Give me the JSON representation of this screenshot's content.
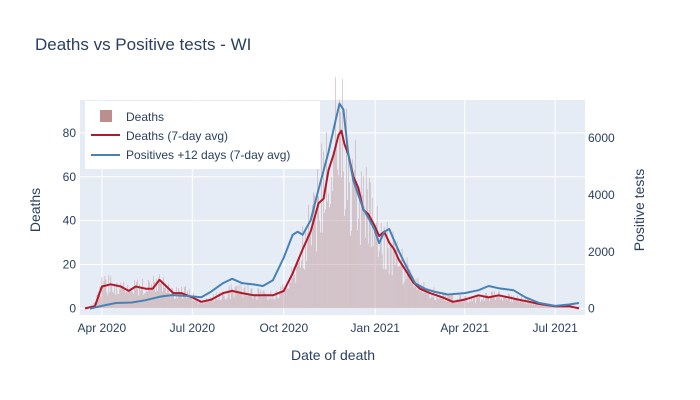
{
  "chart_data": {
    "type": "bar",
    "title": "Deaths vs Positive tests - WI",
    "xlabel": "Date of death",
    "ylabel": "Deaths",
    "y2label": "Positive tests",
    "ylim": [
      -3,
      95
    ],
    "y2lim": [
      -220,
      7330
    ],
    "yticks": [
      0,
      20,
      40,
      60,
      80
    ],
    "y2ticks": [
      0,
      2000,
      4000,
      6000
    ],
    "xlim": [
      "2020-03-10",
      "2021-07-31"
    ],
    "xticks": [
      {
        "date": "2020-04-01",
        "label": "Apr 2020"
      },
      {
        "date": "2020-07-01",
        "label": "Jul 2020"
      },
      {
        "date": "2020-10-01",
        "label": "Oct 2020"
      },
      {
        "date": "2021-01-01",
        "label": "Jan 2021"
      },
      {
        "date": "2021-04-01",
        "label": "Apr 2021"
      },
      {
        "date": "2021-07-01",
        "label": "Jul 2021"
      }
    ],
    "grid": true,
    "legend_position": "top-left",
    "series": [
      {
        "name": "Deaths",
        "kind": "bar",
        "axis": "y",
        "color": "#bc8f8f",
        "sampling": "daily",
        "x_start": "2020-03-15",
        "x_end": "2021-07-25",
        "values_anchor": [
          [
            "2020-03-15",
            0
          ],
          [
            "2020-03-25",
            2
          ],
          [
            "2020-04-01",
            10
          ],
          [
            "2020-04-10",
            11
          ],
          [
            "2020-04-25",
            9
          ],
          [
            "2020-05-05",
            10
          ],
          [
            "2020-05-20",
            9
          ],
          [
            "2020-05-28",
            13
          ],
          [
            "2020-06-10",
            8
          ],
          [
            "2020-06-25",
            7
          ],
          [
            "2020-07-10",
            3
          ],
          [
            "2020-07-25",
            5
          ],
          [
            "2020-08-10",
            8
          ],
          [
            "2020-08-25",
            8
          ],
          [
            "2020-09-10",
            6
          ],
          [
            "2020-09-25",
            6
          ],
          [
            "2020-10-05",
            10
          ],
          [
            "2020-10-15",
            20
          ],
          [
            "2020-10-25",
            32
          ],
          [
            "2020-11-05",
            48
          ],
          [
            "2020-11-15",
            64
          ],
          [
            "2020-11-25",
            78
          ],
          [
            "2020-12-01",
            74
          ],
          [
            "2020-12-05",
            60
          ],
          [
            "2020-12-15",
            55
          ],
          [
            "2020-12-25",
            42
          ],
          [
            "2021-01-05",
            34
          ],
          [
            "2021-01-15",
            28
          ],
          [
            "2021-01-25",
            22
          ],
          [
            "2021-02-05",
            14
          ],
          [
            "2021-02-15",
            9
          ],
          [
            "2021-03-01",
            7
          ],
          [
            "2021-03-15",
            5
          ],
          [
            "2021-04-01",
            4
          ],
          [
            "2021-04-20",
            5
          ],
          [
            "2021-05-01",
            6
          ],
          [
            "2021-05-15",
            5
          ],
          [
            "2021-06-01",
            4
          ],
          [
            "2021-06-15",
            2
          ],
          [
            "2021-07-01",
            1
          ],
          [
            "2021-07-25",
            1
          ]
        ]
      },
      {
        "name": "Deaths (7-day avg)",
        "kind": "line",
        "axis": "y",
        "color": "#b2182b",
        "points": [
          [
            "2020-03-15",
            0
          ],
          [
            "2020-03-25",
            1
          ],
          [
            "2020-04-01",
            10
          ],
          [
            "2020-04-10",
            11
          ],
          [
            "2020-04-20",
            10
          ],
          [
            "2020-04-28",
            8
          ],
          [
            "2020-05-05",
            10
          ],
          [
            "2020-05-15",
            9
          ],
          [
            "2020-05-22",
            9
          ],
          [
            "2020-05-29",
            13
          ],
          [
            "2020-06-05",
            10
          ],
          [
            "2020-06-12",
            7
          ],
          [
            "2020-06-20",
            7
          ],
          [
            "2020-07-01",
            5
          ],
          [
            "2020-07-10",
            3
          ],
          [
            "2020-07-20",
            4
          ],
          [
            "2020-08-01",
            7
          ],
          [
            "2020-08-10",
            8
          ],
          [
            "2020-08-20",
            7
          ],
          [
            "2020-09-01",
            6
          ],
          [
            "2020-09-10",
            6
          ],
          [
            "2020-09-20",
            6
          ],
          [
            "2020-10-01",
            8
          ],
          [
            "2020-10-10",
            16
          ],
          [
            "2020-10-20",
            27
          ],
          [
            "2020-10-28",
            35
          ],
          [
            "2020-11-05",
            48
          ],
          [
            "2020-11-10",
            50
          ],
          [
            "2020-11-15",
            63
          ],
          [
            "2020-11-20",
            70
          ],
          [
            "2020-11-25",
            79
          ],
          [
            "2020-11-28",
            81
          ],
          [
            "2020-12-01",
            75
          ],
          [
            "2020-12-05",
            70
          ],
          [
            "2020-12-10",
            60
          ],
          [
            "2020-12-15",
            55
          ],
          [
            "2020-12-20",
            45
          ],
          [
            "2020-12-25",
            43
          ],
          [
            "2020-12-31",
            38
          ],
          [
            "2021-01-05",
            33
          ],
          [
            "2021-01-10",
            35
          ],
          [
            "2021-01-15",
            30
          ],
          [
            "2021-01-20",
            27
          ],
          [
            "2021-01-25",
            22
          ],
          [
            "2021-02-01",
            17
          ],
          [
            "2021-02-08",
            12
          ],
          [
            "2021-02-15",
            9
          ],
          [
            "2021-02-25",
            7
          ],
          [
            "2021-03-10",
            5
          ],
          [
            "2021-03-20",
            3
          ],
          [
            "2021-04-01",
            4
          ],
          [
            "2021-04-15",
            6
          ],
          [
            "2021-04-25",
            5
          ],
          [
            "2021-05-05",
            6
          ],
          [
            "2021-05-15",
            5
          ],
          [
            "2021-05-25",
            4
          ],
          [
            "2021-06-05",
            3
          ],
          [
            "2021-06-15",
            2
          ],
          [
            "2021-07-01",
            1
          ],
          [
            "2021-07-15",
            1
          ],
          [
            "2021-07-25",
            0
          ]
        ]
      },
      {
        "name": "Positives +12 days (7-day avg)",
        "kind": "line",
        "axis": "y2",
        "color": "#4682b4",
        "points": [
          [
            "2020-03-20",
            0
          ],
          [
            "2020-04-01",
            100
          ],
          [
            "2020-04-15",
            200
          ],
          [
            "2020-05-01",
            220
          ],
          [
            "2020-05-15",
            300
          ],
          [
            "2020-05-29",
            420
          ],
          [
            "2020-06-10",
            480
          ],
          [
            "2020-06-25",
            450
          ],
          [
            "2020-07-10",
            400
          ],
          [
            "2020-07-20",
            600
          ],
          [
            "2020-08-01",
            900
          ],
          [
            "2020-08-10",
            1050
          ],
          [
            "2020-08-20",
            900
          ],
          [
            "2020-09-01",
            850
          ],
          [
            "2020-09-10",
            800
          ],
          [
            "2020-09-20",
            1000
          ],
          [
            "2020-10-01",
            1800
          ],
          [
            "2020-10-10",
            2600
          ],
          [
            "2020-10-15",
            2700
          ],
          [
            "2020-10-20",
            2600
          ],
          [
            "2020-10-28",
            3100
          ],
          [
            "2020-11-05",
            4200
          ],
          [
            "2020-11-15",
            5500
          ],
          [
            "2020-11-22",
            6600
          ],
          [
            "2020-11-26",
            7200
          ],
          [
            "2020-11-30",
            7000
          ],
          [
            "2020-12-05",
            5400
          ],
          [
            "2020-12-10",
            4500
          ],
          [
            "2020-12-15",
            4000
          ],
          [
            "2020-12-20",
            3500
          ],
          [
            "2020-12-25",
            3200
          ],
          [
            "2020-12-31",
            2800
          ],
          [
            "2021-01-05",
            2300
          ],
          [
            "2021-01-10",
            2700
          ],
          [
            "2021-01-15",
            2800
          ],
          [
            "2021-01-20",
            2400
          ],
          [
            "2021-01-25",
            2000
          ],
          [
            "2021-02-01",
            1500
          ],
          [
            "2021-02-10",
            900
          ],
          [
            "2021-02-20",
            700
          ],
          [
            "2021-03-01",
            600
          ],
          [
            "2021-03-15",
            500
          ],
          [
            "2021-04-01",
            550
          ],
          [
            "2021-04-15",
            650
          ],
          [
            "2021-04-25",
            800
          ],
          [
            "2021-05-05",
            720
          ],
          [
            "2021-05-20",
            650
          ],
          [
            "2021-06-01",
            400
          ],
          [
            "2021-06-15",
            200
          ],
          [
            "2021-07-01",
            100
          ],
          [
            "2021-07-15",
            150
          ],
          [
            "2021-07-25",
            200
          ]
        ]
      }
    ]
  }
}
